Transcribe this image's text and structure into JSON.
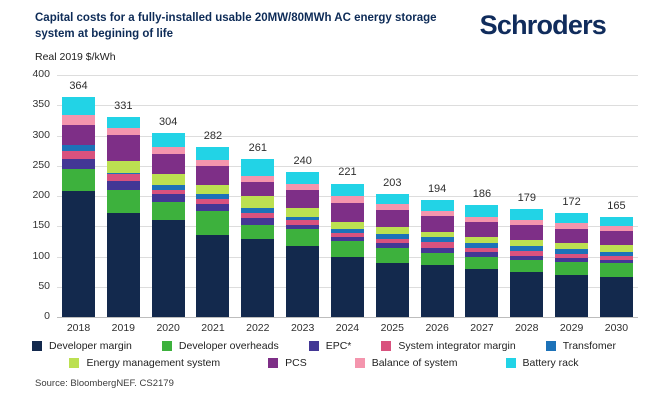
{
  "header": {
    "title": "Capital costs for a fully-installed usable 20MW/80MWh AC energy storage system at begining of life",
    "logo": "Schroders"
  },
  "units_label": "Real 2019 $/kWh",
  "source": "Source: BloombergNEF. CS2179",
  "colors": {
    "title_navy": "#0d2b57",
    "axis_text": "#333333",
    "gridline": "#dddddd",
    "value_label": "#2e2e2e"
  },
  "chart_data": {
    "type": "bar",
    "stacked": true,
    "title": "Capital costs for a fully-installed usable 20MW/80MWh AC energy storage system at begining of life",
    "xlabel": "",
    "ylabel": "Real 2019 $/kWh",
    "ylim": [
      0,
      400
    ],
    "ytick_step": 50,
    "grid": true,
    "legend_position": "bottom",
    "categories": [
      "2018",
      "2019",
      "2020",
      "2021",
      "2022",
      "2023",
      "2024",
      "2025",
      "2026",
      "2027",
      "2028",
      "2029",
      "2030"
    ],
    "totals": [
      364,
      331,
      304,
      282,
      261,
      240,
      221,
      203,
      194,
      186,
      179,
      172,
      165
    ],
    "series": [
      {
        "name": "Developer margin",
        "color": "#13294d",
        "values": [
          209,
          173,
          160,
          136,
          130,
          118,
          100,
          90,
          86,
          79,
          74,
          70,
          66
        ]
      },
      {
        "name": "Developer overheads",
        "color": "#3db13d",
        "values": [
          36,
          38,
          30,
          39,
          23,
          27,
          26,
          24,
          20,
          20,
          20,
          21,
          23
        ]
      },
      {
        "name": "EPC*",
        "color": "#433795",
        "values": [
          17,
          14,
          13,
          12,
          11,
          8,
          7,
          8,
          9,
          8,
          8,
          7,
          6
        ]
      },
      {
        "name": "System integrator margin",
        "color": "#d9527e",
        "values": [
          13,
          11,
          8,
          9,
          8,
          7,
          7,
          8,
          9,
          8,
          8,
          7,
          6
        ]
      },
      {
        "name": "Transfomer",
        "color": "#1d72b8",
        "values": [
          9,
          2,
          8,
          8,
          8,
          6,
          5,
          8,
          8,
          8,
          8,
          7,
          6
        ]
      },
      {
        "name": "Energy management system",
        "color": "#bce051",
        "values": [
          0,
          20,
          17,
          14,
          20,
          14,
          12,
          12,
          9,
          9,
          9,
          10,
          12
        ]
      },
      {
        "name": "PCS",
        "color": "#7e2f87",
        "values": [
          33,
          44,
          34,
          32,
          23,
          30,
          32,
          27,
          26,
          25,
          25,
          24,
          23
        ]
      },
      {
        "name": "Balance of system",
        "color": "#f495ad",
        "values": [
          17,
          11,
          11,
          10,
          11,
          11,
          11,
          10,
          9,
          9,
          9,
          9,
          9
        ]
      },
      {
        "name": "Battery rack",
        "color": "#22d3e6",
        "values": [
          30,
          18,
          23,
          22,
          27,
          19,
          21,
          16,
          18,
          20,
          18,
          17,
          14
        ]
      }
    ],
    "legend_rows": [
      [
        0,
        1,
        2,
        3,
        4
      ],
      [
        5,
        6,
        7,
        8
      ]
    ],
    "legend_row_gaps": [
      30,
      48
    ]
  }
}
